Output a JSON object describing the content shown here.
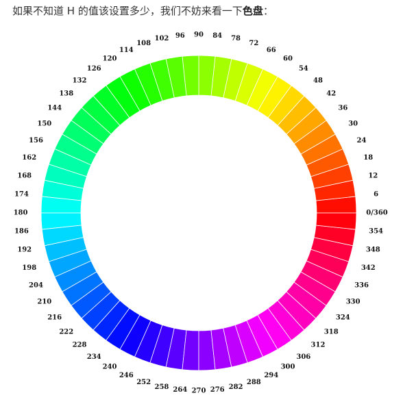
{
  "intro": {
    "text_prefix": "如果不知道 H 的值该设置多少，我们不妨来看一下",
    "text_emphasis": "色盘",
    "text_suffix": "："
  },
  "color_wheel": {
    "step_degrees": 6,
    "labels": [
      "0/360",
      "6",
      "12",
      "18",
      "24",
      "30",
      "36",
      "42",
      "48",
      "54",
      "60",
      "66",
      "72",
      "78",
      "84",
      "90",
      "96",
      "102",
      "108",
      "114",
      "120",
      "126",
      "132",
      "138",
      "144",
      "150",
      "156",
      "162",
      "168",
      "174",
      "180",
      "186",
      "192",
      "198",
      "204",
      "210",
      "216",
      "222",
      "228",
      "234",
      "240",
      "246",
      "252",
      "258",
      "264",
      "270",
      "276",
      "282",
      "288",
      "294",
      "300",
      "306",
      "312",
      "318",
      "324",
      "330",
      "336",
      "342",
      "348",
      "354"
    ],
    "saturation": "100%",
    "lightness": "50%",
    "separator_color": "#ffffff",
    "label_color": "#111111"
  }
}
